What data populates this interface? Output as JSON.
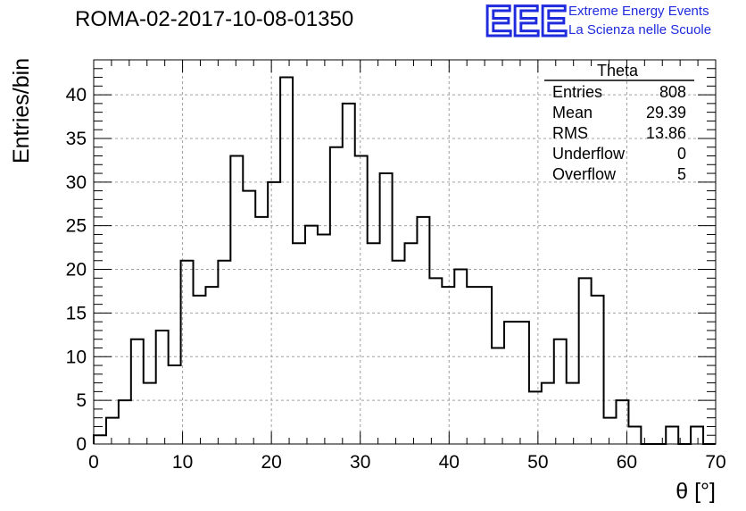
{
  "header": {
    "title": "ROMA-02-2017-10-08-01350"
  },
  "logo": {
    "mark": "EEE",
    "line1": "Extreme Energy Events",
    "line2": "La Scienza nelle Scuole",
    "color": "#1f2bdc"
  },
  "stats_box": {
    "title": "Theta",
    "rows": [
      {
        "label": "Entries",
        "value": "808"
      },
      {
        "label": "Mean",
        "value": "29.39"
      },
      {
        "label": "RMS",
        "value": "13.86"
      },
      {
        "label": "Underflow",
        "value": "0"
      },
      {
        "label": "Overflow",
        "value": "5"
      }
    ]
  },
  "chart_data": {
    "type": "bar",
    "subtype": "histogram",
    "xlabel": "θ [°]",
    "ylabel": "Entries/bin",
    "xlim": [
      0,
      70
    ],
    "ylim": [
      0,
      44
    ],
    "bin_width": 1.4,
    "x_ticks": [
      0,
      10,
      20,
      30,
      40,
      50,
      60,
      70
    ],
    "y_ticks": [
      0,
      5,
      10,
      15,
      20,
      25,
      30,
      35,
      40
    ],
    "grid": true,
    "values": [
      1,
      3,
      5,
      12,
      7,
      13,
      9,
      21,
      17,
      18,
      21,
      33,
      29,
      26,
      30,
      42,
      23,
      25,
      24,
      34,
      39,
      33,
      23,
      31,
      21,
      23,
      26,
      19,
      18,
      20,
      18,
      18,
      11,
      14,
      14,
      6,
      7,
      12,
      7,
      19,
      17,
      3,
      5,
      2,
      0,
      0,
      2,
      0,
      2,
      0
    ],
    "line_color": "#000000"
  }
}
